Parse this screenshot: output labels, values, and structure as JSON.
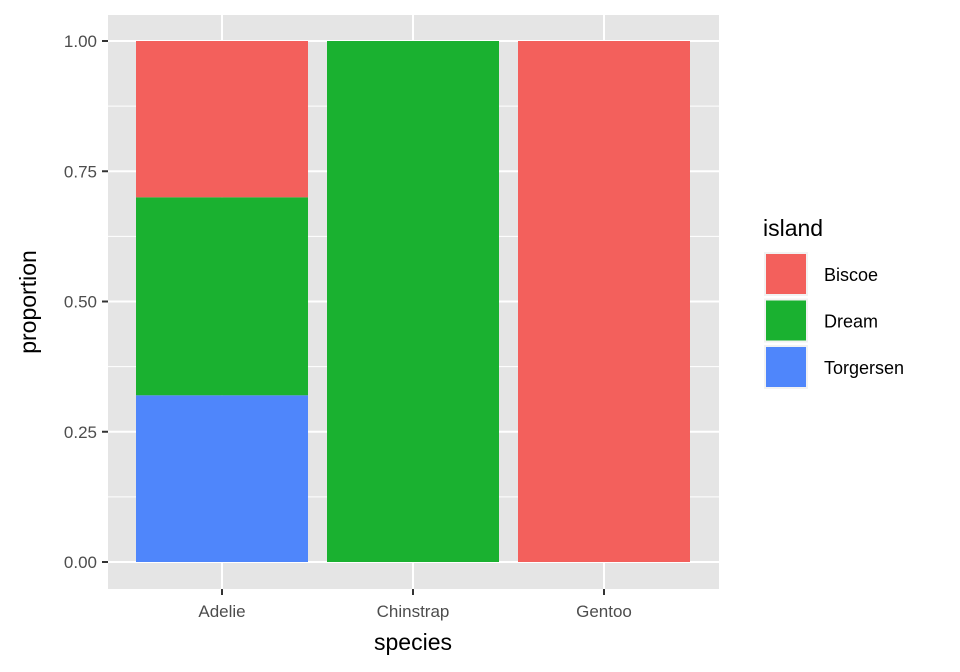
{
  "chart_data": {
    "type": "bar",
    "stacked": true,
    "xlabel": "species",
    "ylabel": "proportion",
    "ylim": [
      0,
      1
    ],
    "yticks": [
      0.0,
      0.25,
      0.5,
      0.75,
      1.0
    ],
    "ytick_labels": [
      "0.00",
      "0.25",
      "0.50",
      "0.75",
      "1.00"
    ],
    "categories": [
      "Adelie",
      "Chinstrap",
      "Gentoo"
    ],
    "series": [
      {
        "name": "Torgersen",
        "values": [
          0.32,
          0.0,
          0.0
        ],
        "color": "#4f86fb"
      },
      {
        "name": "Dream",
        "values": [
          0.38,
          1.0,
          0.0
        ],
        "color": "#1ab130"
      },
      {
        "name": "Biscoe",
        "values": [
          0.3,
          0.0,
          1.0
        ],
        "color": "#f3605c"
      }
    ],
    "legend": {
      "title": "island",
      "entries": [
        "Biscoe",
        "Dream",
        "Torgersen"
      ],
      "position": "right"
    },
    "grid": true,
    "panel_background": "#e5e5e5",
    "grid_color": "#ffffff"
  }
}
